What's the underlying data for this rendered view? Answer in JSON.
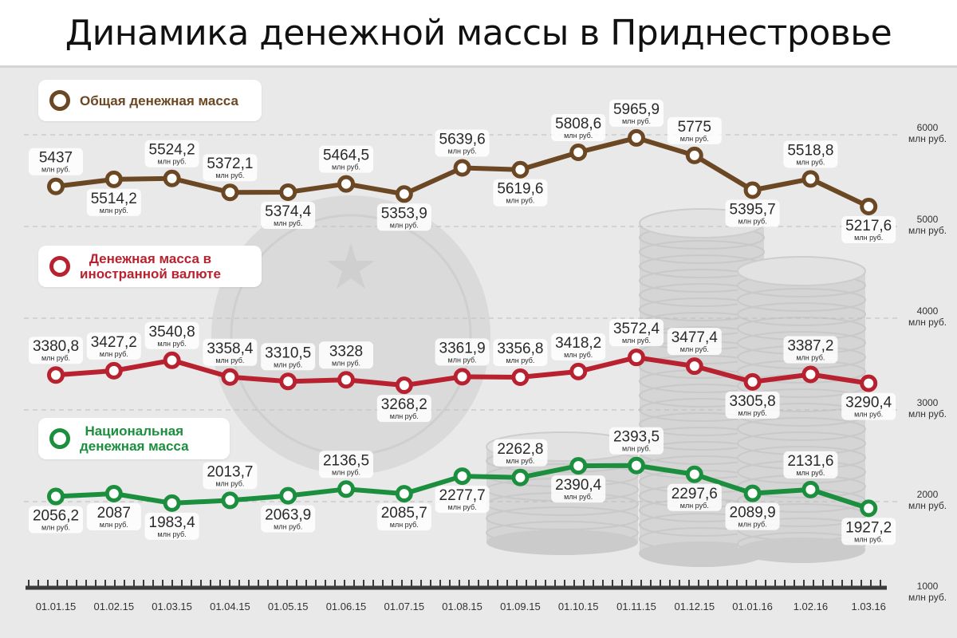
{
  "title": "Динамика денежной массы в Приднестровье",
  "chart_data": {
    "type": "line",
    "title": "Динамика денежной массы в Приднестровье",
    "categories": [
      "01.01.15",
      "01.02.15",
      "01.03.15",
      "01.04.15",
      "01.05.15",
      "01.06.15",
      "01.07.15",
      "01.08.15",
      "01.09.15",
      "01.10.15",
      "01.11.15",
      "01.12.15",
      "01.01.16",
      "1.02.16",
      "1.03.16"
    ],
    "unit_label": "млн руб.",
    "ylim": [
      1000,
      6000
    ],
    "y_ticks": [
      {
        "value": 1000,
        "label": "1000"
      },
      {
        "value": 2000,
        "label": "2000"
      },
      {
        "value": 3000,
        "label": "3000"
      },
      {
        "value": 4000,
        "label": "4000"
      },
      {
        "value": 5000,
        "label": "5000"
      },
      {
        "value": 6000,
        "label": "6000"
      }
    ],
    "grid": true,
    "series": [
      {
        "name": "Общая денежная масса",
        "color": "#6b4723",
        "values": [
          5437,
          5514.2,
          5524.2,
          5372.1,
          5374.4,
          5464.5,
          5353.9,
          5639.6,
          5619.6,
          5808.6,
          5965.9,
          5775,
          5395.7,
          5518.8,
          5217.6
        ],
        "labels": [
          "5437",
          "5514,2",
          "5524,2",
          "5372,1",
          "5374,4",
          "5464,5",
          "5353,9",
          "5639,6",
          "5619,6",
          "5808,6",
          "5965,9",
          "5775",
          "5395,7",
          "5518,8",
          "5217,6"
        ],
        "label_pos": [
          "above",
          "below",
          "above",
          "above",
          "below",
          "above",
          "below",
          "above",
          "below",
          "above",
          "above",
          "above",
          "below",
          "above",
          "below"
        ]
      },
      {
        "name": "Денежная масса в иностранной валюте",
        "color": "#b82230",
        "values": [
          3380.8,
          3427.2,
          3540.8,
          3358.4,
          3310.5,
          3328,
          3268.2,
          3361.9,
          3356.8,
          3418.2,
          3572.4,
          3477.4,
          3305.8,
          3387.2,
          3290.4
        ],
        "labels": [
          "3380,8",
          "3427,2",
          "3540,8",
          "3358,4",
          "3310,5",
          "3328",
          "3268,2",
          "3361,9",
          "3356,8",
          "3418,2",
          "3572,4",
          "3477,4",
          "3305,8",
          "3387,2",
          "3290,4"
        ],
        "label_pos": [
          "above",
          "above",
          "above",
          "above",
          "above",
          "above",
          "below",
          "above",
          "above",
          "above",
          "above",
          "above",
          "below",
          "above",
          "below"
        ]
      },
      {
        "name": "Национальная денежная масса",
        "color": "#1b8f3e",
        "values": [
          2056.2,
          2087,
          1983.4,
          2013.7,
          2063.9,
          2136.5,
          2085.7,
          2277.7,
          2262.8,
          2390.4,
          2393.5,
          2297.6,
          2089.9,
          2131.6,
          1927.2
        ],
        "labels": [
          "2056,2",
          "2087",
          "1983,4",
          "2013,7",
          "2063,9",
          "2136,5",
          "2085,7",
          "2277,7",
          "2262,8",
          "2390,4",
          "2393,5",
          "2297,6",
          "2089,9",
          "2131,6",
          "1927,2"
        ],
        "label_pos": [
          "below",
          "below",
          "below",
          "above",
          "below",
          "above",
          "below",
          "below",
          "above",
          "below",
          "above",
          "below",
          "below",
          "above",
          "below"
        ]
      }
    ]
  },
  "legend": [
    {
      "lines": [
        "Общая денежная масса"
      ],
      "color": "#6b4723"
    },
    {
      "lines": [
        "Денежная масса в",
        "иностранной валюте"
      ],
      "color": "#b82230"
    },
    {
      "lines": [
        "Национальная",
        "денежная масса"
      ],
      "color": "#1b8f3e"
    }
  ]
}
